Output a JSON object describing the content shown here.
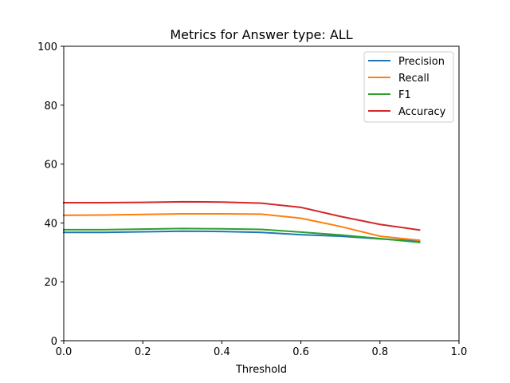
{
  "chart_data": {
    "type": "line",
    "title": "Metrics for Answer type: ALL",
    "xlabel": "Threshold",
    "ylabel": "",
    "xlim": [
      0.0,
      1.0
    ],
    "ylim": [
      0,
      100
    ],
    "xticks": [
      "0.0",
      "0.2",
      "0.4",
      "0.6",
      "0.8",
      "1.0"
    ],
    "yticks": [
      "0",
      "20",
      "40",
      "60",
      "80",
      "100"
    ],
    "grid": false,
    "legend_position": "top-right",
    "x": [
      0.0,
      0.1,
      0.2,
      0.3,
      0.4,
      0.5,
      0.6,
      0.7,
      0.8,
      0.9
    ],
    "series": [
      {
        "name": "Precision",
        "color": "#1f77b4",
        "values": [
          36.8,
          36.8,
          37.0,
          37.2,
          37.1,
          36.8,
          36.0,
          35.5,
          34.6,
          33.8
        ]
      },
      {
        "name": "Recall",
        "color": "#ff7f0e",
        "values": [
          42.6,
          42.7,
          42.9,
          43.1,
          43.1,
          43.0,
          41.6,
          38.8,
          35.5,
          34.1
        ]
      },
      {
        "name": "F1",
        "color": "#2ca02c",
        "values": [
          37.7,
          37.7,
          37.9,
          38.1,
          38.0,
          37.8,
          36.9,
          35.9,
          34.7,
          33.4
        ]
      },
      {
        "name": "Accuracy",
        "color": "#d62728",
        "values": [
          46.9,
          46.9,
          47.0,
          47.2,
          47.1,
          46.7,
          45.3,
          42.2,
          39.5,
          37.6
        ]
      }
    ]
  }
}
